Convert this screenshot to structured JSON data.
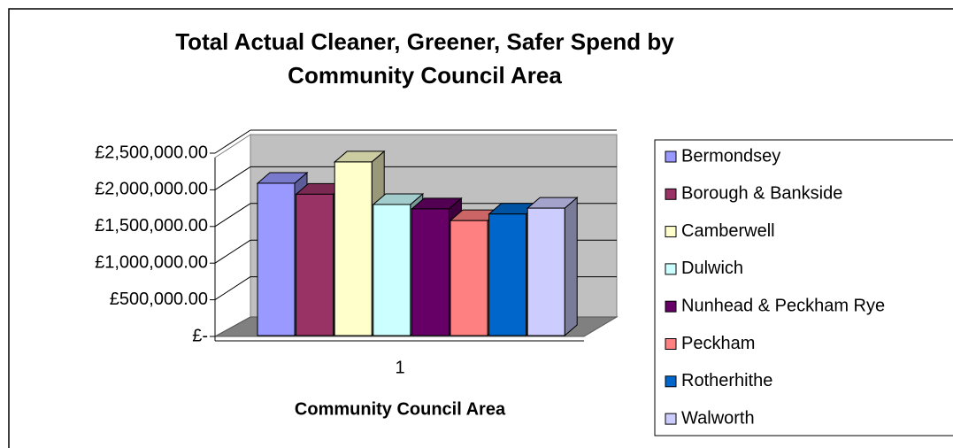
{
  "chart_data": {
    "type": "bar",
    "title": "Total Actual Cleaner, Greener, Safer Spend by Community Council Area",
    "x_label": "Community Council Area",
    "categories": [
      "1"
    ],
    "series": [
      {
        "name": "Bermondsey",
        "color": "#9999ff",
        "values": [
          2090000
        ]
      },
      {
        "name": "Borough & Bankside",
        "color": "#993366",
        "values": [
          1940000
        ]
      },
      {
        "name": "Camberwell",
        "color": "#ffffcc",
        "values": [
          2380000
        ]
      },
      {
        "name": "Dulwich",
        "color": "#ccffff",
        "values": [
          1800000
        ]
      },
      {
        "name": "Nunhead & Peckham Rye",
        "color": "#660066",
        "values": [
          1740000
        ]
      },
      {
        "name": "Peckham",
        "color": "#ff8080",
        "values": [
          1580000
        ]
      },
      {
        "name": "Rotherhithe",
        "color": "#0066cc",
        "values": [
          1670000
        ]
      },
      {
        "name": "Walworth",
        "color": "#ccccff",
        "values": [
          1750000
        ]
      }
    ],
    "ylim": [
      0,
      2500000
    ],
    "yticks": [
      {
        "value": 0,
        "label": "£-"
      },
      {
        "value": 500000,
        "label": "£500,000.00"
      },
      {
        "value": 1000000,
        "label": "£1,000,000.00"
      },
      {
        "value": 1500000,
        "label": "£1,500,000.00"
      },
      {
        "value": 2000000,
        "label": "£2,000,000.00"
      },
      {
        "value": 2500000,
        "label": "£2,500,000.00"
      }
    ],
    "grid": true,
    "legend": "right"
  }
}
